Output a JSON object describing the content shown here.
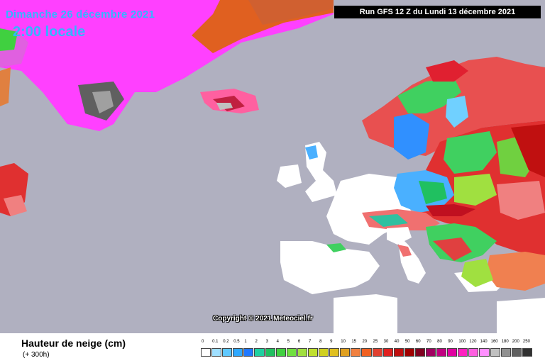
{
  "header": {
    "date": "Dimanche 26 décembre 2021",
    "time": "2:00 locale",
    "run": "Run GFS 12 Z du Lundi 13 décembre 2021"
  },
  "copyright": "Copyright © 2021 Meteociel.fr",
  "legend": {
    "title": "Hauteur de neige (cm)",
    "subtitle": "(+ 300h)",
    "levels": [
      "0",
      "0.1",
      "0.2",
      "0.5",
      "1",
      "2",
      "3",
      "4",
      "5",
      "6",
      "7",
      "8",
      "9",
      "10",
      "15",
      "20",
      "25",
      "30",
      "40",
      "50",
      "60",
      "70",
      "80",
      "90",
      "100",
      "120",
      "140",
      "160",
      "180",
      "200",
      "250"
    ],
    "colors": [
      "#ffffff",
      "#9fdfff",
      "#5fc8ff",
      "#2fa8ff",
      "#1f78ff",
      "#1fd0a0",
      "#20c060",
      "#40d040",
      "#70e040",
      "#a0e040",
      "#c0e030",
      "#d0d020",
      "#e0c020",
      "#e0a020",
      "#f08040",
      "#f06020",
      "#e04030",
      "#e02020",
      "#c01010",
      "#a00000",
      "#800020",
      "#a00060",
      "#c00080",
      "#e000a0",
      "#ff20c0",
      "#ff60e0",
      "#ff90ff",
      "#c0c0c0",
      "#909090",
      "#606060",
      "#303030"
    ]
  },
  "map_colors": {
    "sea": "#b0b0c0",
    "snow_free_land": "#ffffff",
    "greenland_ice": "#ff40ff",
    "russia": "#e03030",
    "scandinavia": "#f06060",
    "light_snow": "#40d060",
    "thin_snow": "#60b0ff"
  }
}
